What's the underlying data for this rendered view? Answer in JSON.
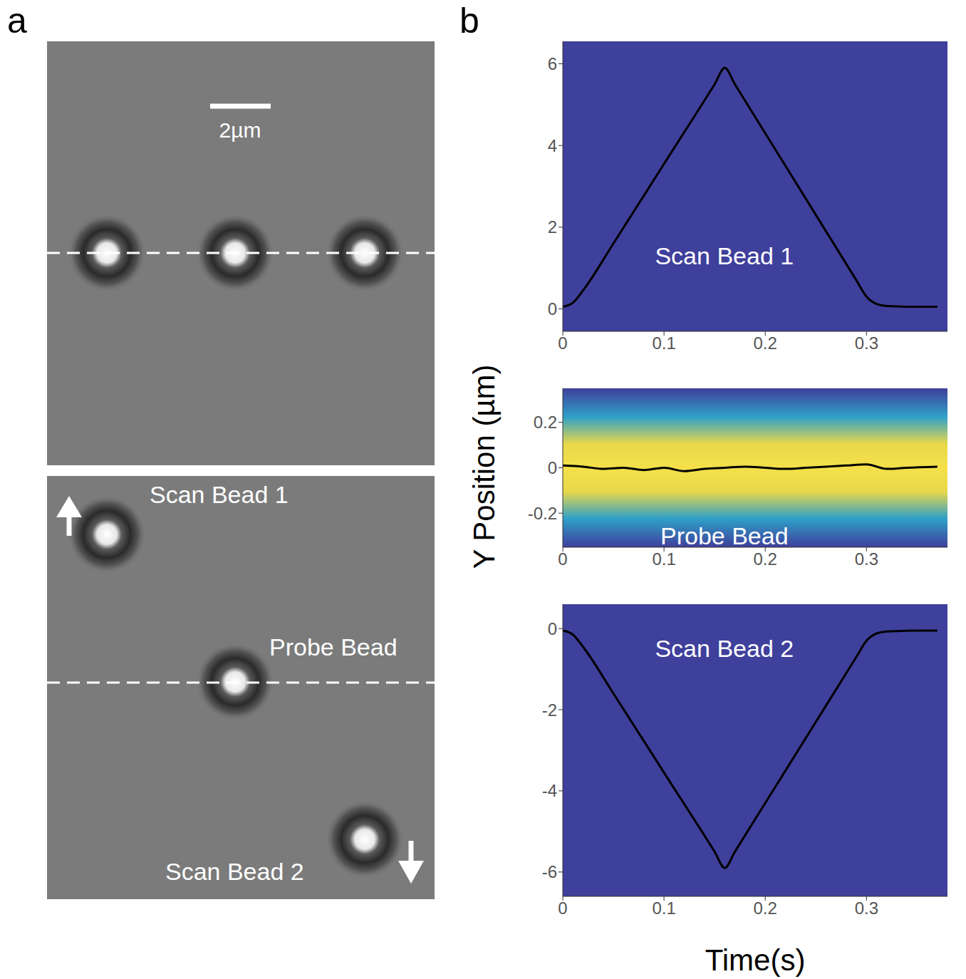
{
  "panel_labels": [
    "a",
    "b"
  ],
  "images": {
    "scale_bar": "2µm",
    "labels": [
      "Scan Bead 1",
      "Probe Bead",
      "Scan Bead 2"
    ]
  },
  "ylabel": "Y Position (µm)",
  "xlabel": "Time(s)",
  "chart_data": [
    {
      "type": "line",
      "annotation": "Scan Bead 1",
      "color": "#000000",
      "x": [
        0,
        0.01,
        0.02,
        0.05,
        0.1,
        0.15,
        0.16,
        0.17,
        0.2,
        0.25,
        0.29,
        0.3,
        0.31,
        0.32,
        0.35,
        0.37
      ],
      "values": [
        0.05,
        0.15,
        0.45,
        1.6,
        3.55,
        5.5,
        5.9,
        5.5,
        4.3,
        2.3,
        0.7,
        0.3,
        0.12,
        0.07,
        0.05,
        0.05
      ],
      "xlim": [
        0,
        0.38
      ],
      "xticks": [
        0,
        0.1,
        0.2,
        0.3
      ],
      "ylim": [
        -0.55,
        6.55
      ],
      "yticks": [
        0,
        2,
        4,
        6
      ]
    },
    {
      "type": "line",
      "annotation": "Probe Bead",
      "color": "#000000",
      "x": [
        0,
        0.02,
        0.04,
        0.06,
        0.08,
        0.1,
        0.12,
        0.14,
        0.16,
        0.18,
        0.2,
        0.22,
        0.24,
        0.26,
        0.28,
        0.3,
        0.32,
        0.34,
        0.37
      ],
      "values": [
        0.01,
        0.005,
        -0.005,
        0.0,
        -0.01,
        0.0,
        -0.015,
        -0.005,
        0.0,
        0.005,
        0.0,
        -0.005,
        0.0,
        0.005,
        0.01,
        0.015,
        -0.005,
        0.0,
        0.005
      ],
      "xlim": [
        0,
        0.38
      ],
      "xticks": [
        0,
        0.1,
        0.2,
        0.3
      ],
      "ylim": [
        -0.35,
        0.35
      ],
      "yticks": [
        -0.2,
        0,
        0.2
      ]
    },
    {
      "type": "line",
      "annotation": "Scan Bead 2",
      "color": "#000000",
      "x": [
        0,
        0.01,
        0.02,
        0.05,
        0.1,
        0.15,
        0.16,
        0.17,
        0.2,
        0.25,
        0.29,
        0.3,
        0.31,
        0.32,
        0.35,
        0.37
      ],
      "values": [
        -0.05,
        -0.15,
        -0.45,
        -1.6,
        -3.55,
        -5.5,
        -5.9,
        -5.5,
        -4.3,
        -2.3,
        -0.7,
        -0.3,
        -0.12,
        -0.07,
        -0.05,
        -0.05
      ],
      "xlim": [
        0,
        0.38
      ],
      "xticks": [
        0,
        0.1,
        0.2,
        0.3
      ],
      "ylim": [
        -6.6,
        0.6
      ],
      "yticks": [
        -6,
        -4,
        -2,
        0
      ]
    }
  ]
}
